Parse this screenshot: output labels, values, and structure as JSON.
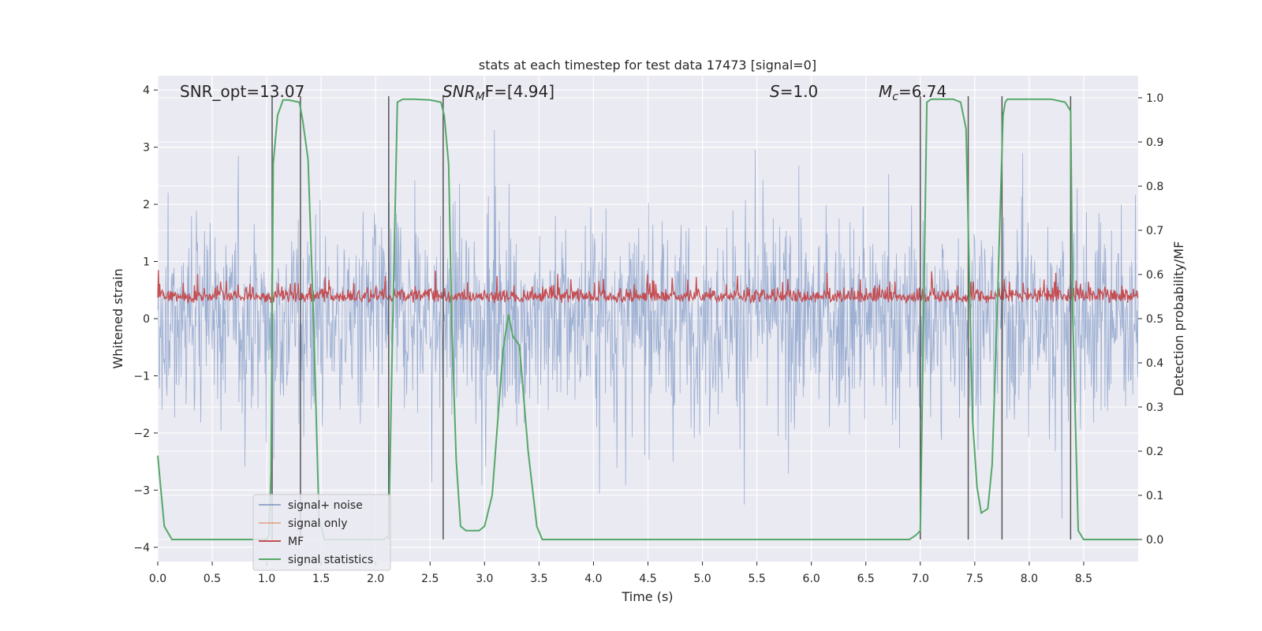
{
  "chart_data": {
    "type": "line",
    "title": "stats at each timestep for test data 17473 [signal=0]",
    "xlabel": "Time (s)",
    "ylabel": "Whitened strain",
    "y2label": "Detection probability/MF",
    "xlim": [
      0,
      9.0
    ],
    "ylim": [
      -4.25,
      4.25
    ],
    "y2lim": [
      -0.05,
      1.05
    ],
    "x_ticks": [
      0.0,
      0.5,
      1.0,
      1.5,
      2.0,
      2.5,
      3.0,
      3.5,
      4.0,
      4.5,
      5.0,
      5.5,
      6.0,
      6.5,
      7.0,
      7.5,
      8.0,
      8.5
    ],
    "x_tick_labels": [
      "0.0",
      "0.5",
      "1.0",
      "1.5",
      "2.0",
      "2.5",
      "3.0",
      "3.5",
      "4.0",
      "4.5",
      "5.0",
      "5.5",
      "6.0",
      "6.5",
      "7.0",
      "7.5",
      "8.0",
      "8.5"
    ],
    "y_ticks": [
      4,
      3,
      2,
      1,
      0,
      -1,
      -2,
      -3,
      -4
    ],
    "y_tick_labels": [
      "4",
      "3",
      "2",
      "1",
      "0",
      "−1",
      "−2",
      "−3",
      "−4"
    ],
    "y2_ticks": [
      1.0,
      0.9,
      0.8,
      0.7,
      0.6,
      0.5,
      0.4,
      0.3,
      0.2,
      0.1,
      0.0
    ],
    "y2_tick_labels": [
      "1.0",
      "0.9",
      "0.8",
      "0.7",
      "0.6",
      "0.5",
      "0.4",
      "0.3",
      "0.2",
      "0.1",
      "0.0"
    ],
    "y2_extra_gridlines": [
      0.69,
      0.59,
      0.31
    ],
    "annotations": {
      "snr_opt": "SNR_opt=13.07",
      "snr_mf_sym": "SNR",
      "snr_mf_sub": "M",
      "snr_mf_rest": "F=[4.94]",
      "s_sym": "S",
      "s_rest": "=1.0",
      "mc_sym": "M",
      "mc_sub": "c",
      "mc_rest": "=6.74"
    },
    "legend": {
      "position": "lower-left",
      "entries": [
        {
          "label": "signal+ noise",
          "color": "#4c72b0"
        },
        {
          "label": "signal only",
          "color": "#dd8452"
        },
        {
          "label": "MF",
          "color": "#c44e52"
        },
        {
          "label": "signal statistics",
          "color": "#55a868"
        }
      ]
    },
    "series": [
      {
        "name": "signal+ noise",
        "color": "#4c72b0",
        "axis": "left",
        "description": "dense whitened strain noise, approximately within -3.5 to 3.3"
      },
      {
        "name": "MF",
        "color": "#c44e52",
        "axis": "right",
        "description": "matched filter output, approximately 0.50 to 0.63"
      },
      {
        "name": "signal statistics",
        "color": "#55a868",
        "axis": "right",
        "x": [
          0.0,
          0.06,
          0.13,
          0.25,
          0.5,
          0.8,
          1.0,
          1.02,
          1.04,
          1.06,
          1.1,
          1.15,
          1.2,
          1.3,
          1.33,
          1.38,
          1.43,
          1.48,
          1.53,
          1.6,
          1.8,
          2.0,
          2.08,
          2.12,
          2.15,
          2.2,
          2.25,
          2.35,
          2.5,
          2.6,
          2.63,
          2.67,
          2.7,
          2.74,
          2.78,
          2.83,
          2.9,
          2.95,
          3.0,
          3.07,
          3.17,
          3.22,
          3.26,
          3.32,
          3.4,
          3.48,
          3.53,
          3.6,
          4.0,
          5.0,
          6.0,
          6.9,
          6.96,
          7.0,
          7.03,
          7.06,
          7.1,
          7.2,
          7.3,
          7.37,
          7.42,
          7.45,
          7.48,
          7.52,
          7.56,
          7.62,
          7.66,
          7.71,
          7.76,
          7.78,
          7.8,
          7.84,
          7.9,
          8.0,
          8.2,
          8.33,
          8.38,
          8.4,
          8.45,
          8.5,
          8.6,
          9.0
        ],
        "values": [
          0.19,
          0.03,
          0.0,
          0.0,
          0.0,
          0.0,
          0.0,
          0.01,
          0.15,
          0.85,
          0.96,
          0.995,
          0.995,
          0.99,
          0.95,
          0.86,
          0.5,
          0.05,
          0.0,
          0.0,
          0.0,
          0.0,
          0.0,
          0.01,
          0.4,
          0.99,
          0.997,
          0.997,
          0.995,
          0.99,
          0.96,
          0.85,
          0.48,
          0.18,
          0.03,
          0.02,
          0.02,
          0.02,
          0.03,
          0.1,
          0.43,
          0.51,
          0.46,
          0.44,
          0.2,
          0.03,
          0.0,
          0.0,
          0.0,
          0.0,
          0.0,
          0.0,
          0.01,
          0.02,
          0.5,
          0.99,
          0.997,
          0.997,
          0.997,
          0.99,
          0.93,
          0.6,
          0.27,
          0.12,
          0.06,
          0.07,
          0.17,
          0.55,
          0.96,
          0.99,
          0.997,
          0.997,
          0.997,
          0.997,
          0.997,
          0.99,
          0.97,
          0.5,
          0.02,
          0.0,
          0.0,
          0.0
        ]
      }
    ],
    "vertical_lines": [
      1.05,
      1.31,
      2.12,
      2.62,
      7.0,
      7.44,
      7.75,
      8.38
    ]
  }
}
